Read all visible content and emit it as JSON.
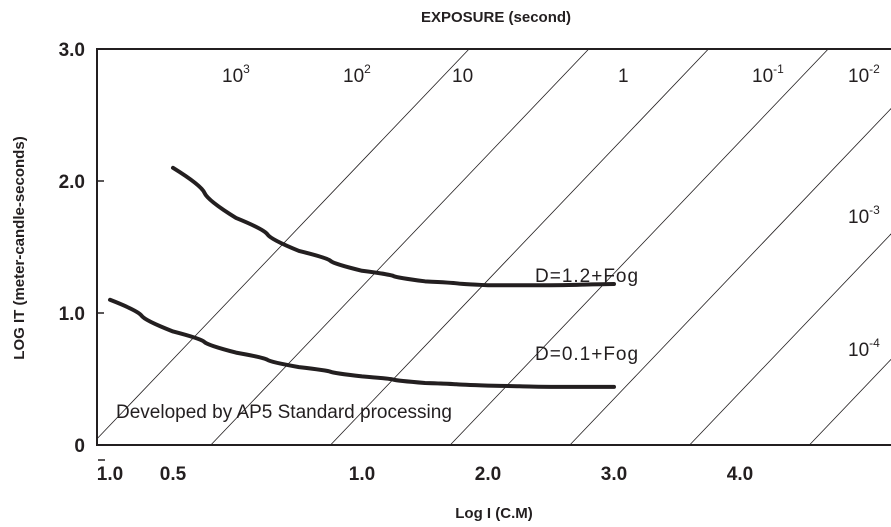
{
  "chart_data": {
    "type": "line",
    "title": "EXPOSURE (second)",
    "xlabel": "Log I (C.M)",
    "ylabel": "LOG IT (meter-candle-seconds)",
    "xlim": [
      -1.0,
      4.0
    ],
    "ylim": [
      0,
      3.0
    ],
    "x_ticks": [
      {
        "value": -1.0,
        "label": "1.0",
        "bar": true
      },
      {
        "value": -0.5,
        "label": "0.5"
      },
      {
        "value": 1.0,
        "label": "1.0"
      },
      {
        "value": 2.0,
        "label": "2.0"
      },
      {
        "value": 3.0,
        "label": "3.0"
      },
      {
        "value": 4.0,
        "label": "4.0"
      }
    ],
    "y_ticks": [
      {
        "value": 0,
        "label": "0"
      },
      {
        "value": 1.0,
        "label": "1.0"
      },
      {
        "value": 2.0,
        "label": "2.0"
      },
      {
        "value": 3.0,
        "label": "3.0"
      }
    ],
    "exposure_lines": [
      {
        "base": "10",
        "exp": "3"
      },
      {
        "base": "10",
        "exp": "2"
      },
      {
        "base": "10",
        "exp": ""
      },
      {
        "base": "1",
        "exp": ""
      },
      {
        "base": "10",
        "exp": "-1"
      },
      {
        "base": "10",
        "exp": "-2"
      },
      {
        "base": "10",
        "exp": "-3"
      },
      {
        "base": "10",
        "exp": "-4"
      }
    ],
    "series": [
      {
        "name": "D=1.2+Fog",
        "points": [
          [
            -0.5,
            2.1
          ],
          [
            0.0,
            1.72
          ],
          [
            0.5,
            1.47
          ],
          [
            1.0,
            1.32
          ],
          [
            1.5,
            1.24
          ],
          [
            2.0,
            1.21
          ],
          [
            2.5,
            1.21
          ],
          [
            3.0,
            1.22
          ]
        ]
      },
      {
        "name": "D=0.1+Fog",
        "points": [
          [
            -1.0,
            1.1
          ],
          [
            -0.5,
            0.86
          ],
          [
            0.0,
            0.7
          ],
          [
            0.5,
            0.59
          ],
          [
            1.0,
            0.52
          ],
          [
            1.5,
            0.47
          ],
          [
            2.0,
            0.45
          ],
          [
            2.5,
            0.44
          ],
          [
            3.0,
            0.44
          ]
        ]
      }
    ],
    "annotation": "Developed by AP5 Standard processing",
    "grid": false,
    "legend": "none"
  }
}
